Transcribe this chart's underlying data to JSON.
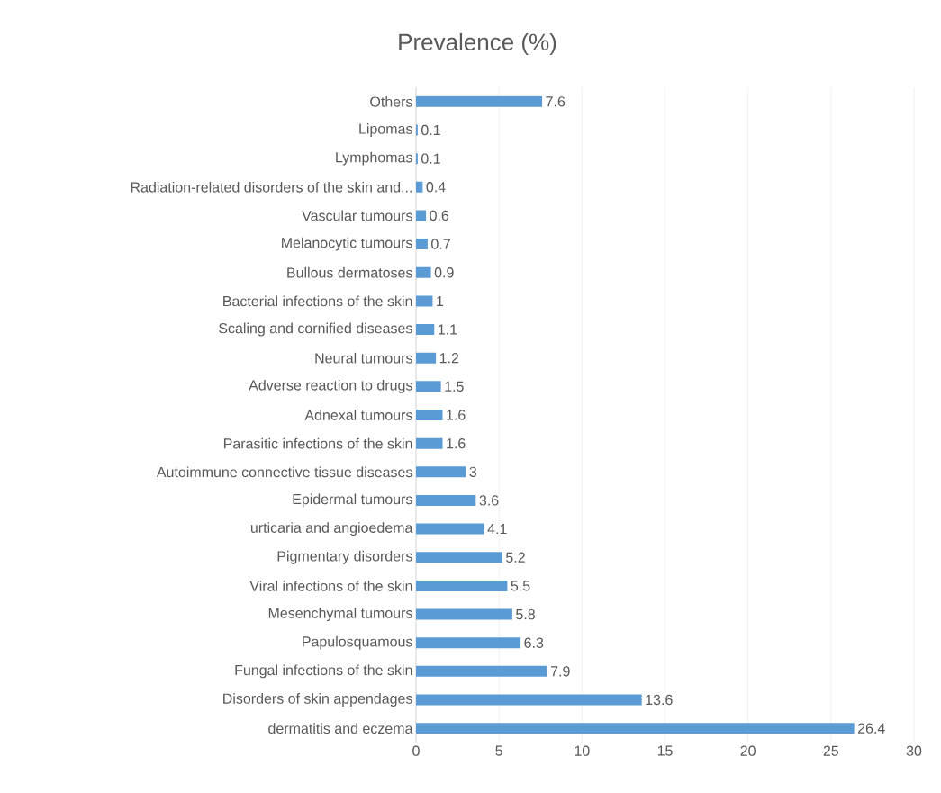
{
  "chart_data": {
    "type": "bar",
    "orientation": "horizontal",
    "title": "Prevalence (%)",
    "categories": [
      "Others",
      "Lipomas",
      "Lymphomas",
      "Radiation-related disorders of the skin and...",
      "Vascular tumours",
      "Melanocytic tumours",
      "Bullous dermatoses",
      "Bacterial infections of the skin",
      "Scaling and cornified diseases",
      "Neural tumours",
      "Adverse reaction to drugs",
      "Adnexal tumours",
      "Parasitic infections of the skin",
      "Autoimmune connective tissue diseases",
      "Epidermal tumours",
      "urticaria and angioedema",
      "Pigmentary disorders",
      "Viral infections of the skin",
      "Mesenchymal tumours",
      "Papulosquamous",
      "Fungal infections of the skin",
      "Disorders of skin appendages",
      "dermatitis and eczema"
    ],
    "values": [
      7.6,
      0.1,
      0.1,
      0.4,
      0.6,
      0.7,
      0.9,
      1,
      1.1,
      1.2,
      1.5,
      1.6,
      1.6,
      3,
      3.6,
      4.1,
      5.2,
      5.5,
      5.8,
      6.3,
      7.9,
      13.6,
      26.4
    ],
    "color": "#5b9bd5",
    "xlim": [
      0,
      30
    ],
    "xticks": [
      0,
      5,
      10,
      15,
      20,
      25,
      30
    ],
    "grid": "x",
    "data_labels": true
  }
}
